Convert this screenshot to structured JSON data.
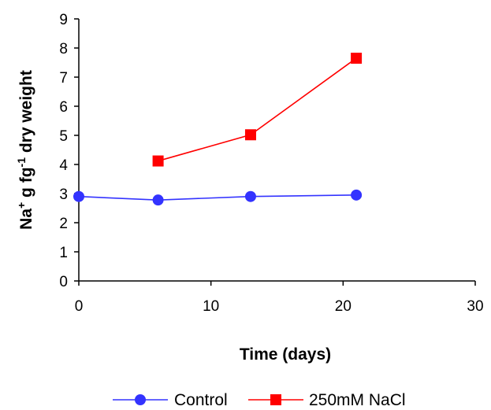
{
  "chart_data": {
    "type": "line",
    "title": "",
    "xlabel": "Time (days)",
    "ylabel": {
      "base": "Na",
      "sup1": "+",
      "mid": " g fg",
      "sup2": "-1",
      "end": " dry weight"
    },
    "xlim": [
      0,
      30
    ],
    "ylim": [
      0,
      9
    ],
    "x_ticks": [
      "0",
      "10",
      "20",
      "30"
    ],
    "y_ticks": [
      "0",
      "1",
      "2",
      "3",
      "4",
      "5",
      "6",
      "7",
      "8",
      "9"
    ],
    "grid": false,
    "legend_position": "bottom",
    "series": [
      {
        "name": "Control",
        "color": "#3333ff",
        "marker": "circle",
        "points": [
          {
            "x": 0,
            "y": 2.9
          },
          {
            "x": 6,
            "y": 2.78
          },
          {
            "x": 13,
            "y": 2.9
          },
          {
            "x": 21,
            "y": 2.95
          }
        ]
      },
      {
        "name": "250mM NaCl",
        "color": "#ff0000",
        "marker": "square",
        "points": [
          {
            "x": 6,
            "y": 4.12
          },
          {
            "x": 13,
            "y": 5.02
          },
          {
            "x": 21,
            "y": 7.65
          }
        ]
      }
    ]
  }
}
